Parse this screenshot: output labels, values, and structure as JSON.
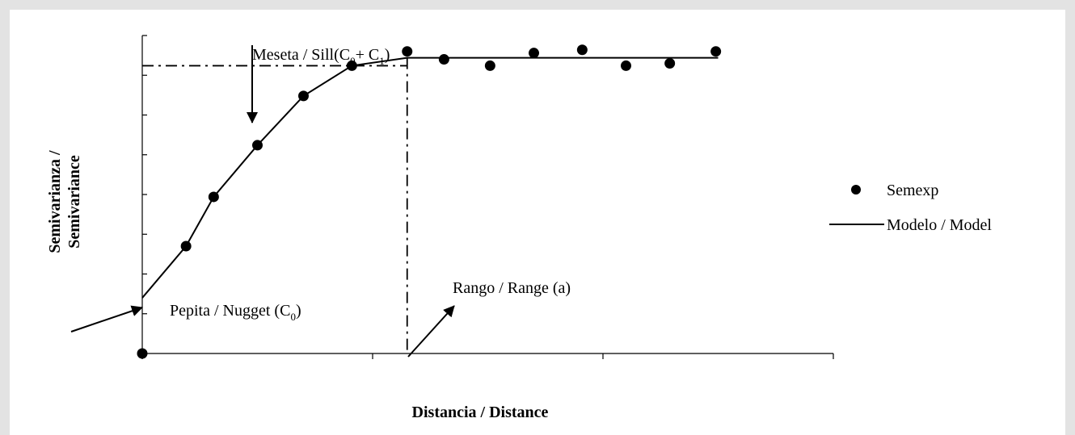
{
  "colors": {
    "background": "#e3e3e3",
    "plot_background": "#ffffff",
    "ink": "#000000"
  },
  "chart_data": {
    "type": "scatter",
    "title": "",
    "xlabel": "Distancia / Distance",
    "ylabel_line1": "Semivarianza /",
    "ylabel_line2": "Semivariance",
    "xlim": [
      0,
      30
    ],
    "ylim": [
      0,
      4
    ],
    "x_ticks": [
      0,
      10,
      20,
      30
    ],
    "y_ticks": [
      0,
      0.5,
      1,
      1.5,
      2,
      2.5,
      3,
      3.5,
      4
    ],
    "show_tick_labels": false,
    "grid": false,
    "legend_position": "right",
    "series": [
      {
        "name": "Semexp",
        "kind": "points",
        "x": [
          0,
          1.9,
          3.1,
          5.0,
          7.0,
          9.1,
          11.5,
          13.1,
          15.1,
          17.0,
          19.1,
          21.0,
          22.9,
          24.9
        ],
        "y": [
          0,
          1.35,
          1.97,
          2.62,
          3.24,
          3.62,
          3.8,
          3.7,
          3.62,
          3.78,
          3.82,
          3.62,
          3.65,
          3.8
        ]
      },
      {
        "name": "Modelo / Model",
        "kind": "line",
        "x": [
          0,
          1.9,
          3.1,
          5.0,
          7.0,
          9.1,
          11.5,
          25.0
        ],
        "y": [
          0.7,
          1.35,
          1.97,
          2.62,
          3.24,
          3.62,
          3.72,
          3.72
        ]
      }
    ],
    "reference_lines": {
      "sill_y": 3.62,
      "sill_x_range": [
        0,
        11.5
      ],
      "range_x": 11.5,
      "range_y_range": [
        0,
        3.72
      ]
    },
    "annotations": {
      "sill": {
        "main": "Meseta / Sill(C",
        "sub0": "0",
        "plus": "+ C",
        "sub1": "1",
        "close": ")"
      },
      "nugget": {
        "main": "Pepita / Nugget (C",
        "sub0": "0",
        "close": ")"
      },
      "range": {
        "text": "Rango / Range (a)"
      }
    }
  }
}
